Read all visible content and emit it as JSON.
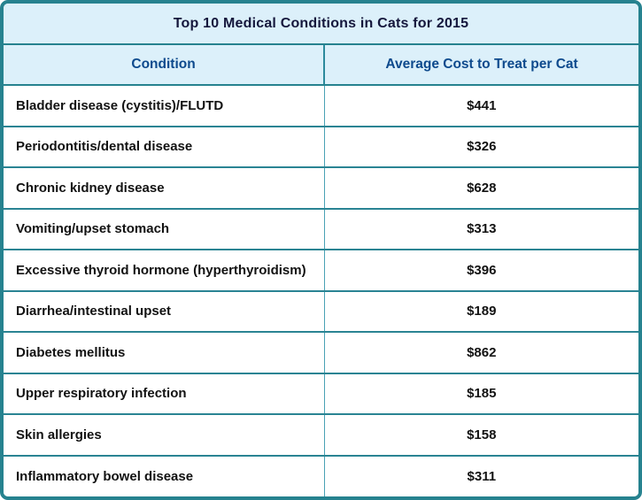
{
  "title": "Top 10 Medical Conditions in Cats for 2015",
  "table": {
    "headers": {
      "condition": "Condition",
      "cost": "Average Cost to Treat per Cat"
    },
    "rows": [
      {
        "condition": "Bladder disease (cystitis)/FLUTD",
        "cost": "$441"
      },
      {
        "condition": "Periodontitis/dental disease",
        "cost": "$326"
      },
      {
        "condition": "Chronic kidney disease",
        "cost": "$628"
      },
      {
        "condition": "Vomiting/upset stomach",
        "cost": "$313"
      },
      {
        "condition": "Excessive thyroid hormone (hyperthyroidism)",
        "cost": "$396"
      },
      {
        "condition": "Diarrhea/intestinal upset",
        "cost": "$189"
      },
      {
        "condition": "Diabetes mellitus",
        "cost": "$862"
      },
      {
        "condition": "Upper respiratory infection",
        "cost": "$185"
      },
      {
        "condition": "Skin allergies",
        "cost": "$158"
      },
      {
        "condition": "Inflammatory bowel disease",
        "cost": "$311"
      }
    ]
  },
  "colors": {
    "outer_border": "#26828f",
    "row_divider": "#2a8493",
    "column_divider": "#4aa2b5",
    "header_background": "#dcf0fa",
    "row_background": "#ffffff",
    "title_text": "#15173c",
    "header_text": "#0e4a8d",
    "body_text": "#121212"
  },
  "chart_data": {
    "type": "table",
    "title": "Top 10 Medical Conditions in Cats for 2015",
    "columns": [
      "Condition",
      "Average Cost to Treat per Cat"
    ],
    "categories": [
      "Bladder disease (cystitis)/FLUTD",
      "Periodontitis/dental disease",
      "Chronic kidney disease",
      "Vomiting/upset stomach",
      "Excessive thyroid hormone (hyperthyroidism)",
      "Diarrhea/intestinal upset",
      "Diabetes mellitus",
      "Upper respiratory infection",
      "Skin allergies",
      "Inflammatory bowel disease"
    ],
    "values": [
      441,
      326,
      628,
      313,
      396,
      189,
      862,
      185,
      158,
      311
    ],
    "value_unit": "USD"
  }
}
